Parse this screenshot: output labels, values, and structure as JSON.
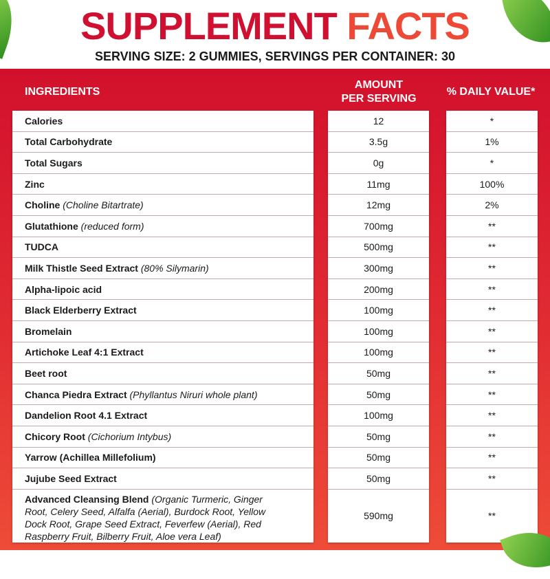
{
  "title": {
    "part1": "SUPPLEMENT",
    "part2": "FACTS"
  },
  "serving": "SERVING SIZE: 2 GUMMIES, SERVINGS PER CONTAINER: 30",
  "columns": {
    "ingredients": "INGREDIENTS",
    "amount_line1": "AMOUNT",
    "amount_line2": "PER SERVING",
    "dv": "% DAILY VALUE*"
  },
  "colors": {
    "title_red": "#cf1030",
    "title_orange": "#ec4a36",
    "panel_top": "#d2102c",
    "panel_bottom": "#ee4c38"
  },
  "rows": [
    {
      "name": "Calories",
      "note": "",
      "amount": "12",
      "dv": "*"
    },
    {
      "name": "Total Carbohydrate",
      "note": "",
      "amount": "3.5g",
      "dv": "1%"
    },
    {
      "name": "Total Sugars",
      "note": "",
      "amount": "0g",
      "dv": "*"
    },
    {
      "name": "Zinc",
      "note": "",
      "amount": "11mg",
      "dv": "100%"
    },
    {
      "name": "Choline",
      "note": "(Choline Bitartrate)",
      "amount": "12mg",
      "dv": "2%"
    },
    {
      "name": "Glutathione",
      "note": "(reduced form)",
      "amount": "700mg",
      "dv": "**"
    },
    {
      "name": "TUDCA",
      "note": "",
      "amount": "500mg",
      "dv": "**"
    },
    {
      "name": "Milk Thistle Seed Extract",
      "note": "(80% Silymarin)",
      "amount": "300mg",
      "dv": "**"
    },
    {
      "name": "Alpha-lipoic acid",
      "note": "",
      "amount": "200mg",
      "dv": "**"
    },
    {
      "name": "Black Elderberry Extract",
      "note": "",
      "amount": "100mg",
      "dv": "**"
    },
    {
      "name": "Bromelain",
      "note": "",
      "amount": "100mg",
      "dv": "**"
    },
    {
      "name": "Artichoke Leaf 4:1 Extract",
      "note": "",
      "amount": "100mg",
      "dv": "**"
    },
    {
      "name": "Beet root",
      "note": "",
      "amount": "50mg",
      "dv": "**"
    },
    {
      "name": "Chanca Piedra Extract",
      "note": "(Phyllantus Niruri whole plant)",
      "amount": "50mg",
      "dv": "**"
    },
    {
      "name": "Dandelion Root 4.1 Extract",
      "note": "",
      "amount": "100mg",
      "dv": "**"
    },
    {
      "name": "Chicory Root",
      "note": "(Cichorium Intybus)",
      "amount": "50mg",
      "dv": "**"
    },
    {
      "name": "Yarrow (Achillea Millefolium)",
      "note": "",
      "amount": "50mg",
      "dv": "**"
    },
    {
      "name": "Jujube Seed Extract",
      "note": "",
      "amount": "50mg",
      "dv": "**"
    },
    {
      "name": "Advanced Cleansing Blend",
      "note": "(Organic Turmeric, Ginger Root, Celery Seed, Alfalfa (Aerial), Burdock Root, Yellow Dock Root, Grape Seed Extract, Feverfew (Aerial), Red Raspberry Fruit, Bilberry Fruit, Aloe vera Leaf)",
      "amount": "590mg",
      "dv": "**"
    }
  ]
}
